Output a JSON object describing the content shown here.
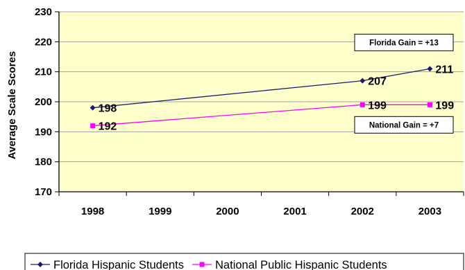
{
  "chart_data": {
    "type": "line",
    "title": "",
    "xlabel": "",
    "ylabel": "Average Scale Scores",
    "categories": [
      "1998",
      "1999",
      "2000",
      "2001",
      "2002",
      "2003"
    ],
    "ylim": [
      170,
      230
    ],
    "yticks": [
      170,
      180,
      190,
      200,
      210,
      220,
      230
    ],
    "grid": true,
    "legend_position": "bottom",
    "series": [
      {
        "name": "Florida Hispanic Students",
        "color": "#1a1a6e",
        "marker": "diamond",
        "points": [
          {
            "x": "1998",
            "y": 198
          },
          {
            "x": "2002",
            "y": 207
          },
          {
            "x": "2003",
            "y": 211
          }
        ],
        "labels": [
          "198",
          "207",
          "211"
        ]
      },
      {
        "name": "National Public Hispanic Students",
        "color": "#ff00ff",
        "marker": "square",
        "points": [
          {
            "x": "1998",
            "y": 192
          },
          {
            "x": "2002",
            "y": 199
          },
          {
            "x": "2003",
            "y": 199
          }
        ],
        "labels": [
          "192",
          "199",
          "199"
        ]
      }
    ],
    "annotations": [
      {
        "text": "Florida Gain = +13",
        "near_series": "Florida Hispanic Students"
      },
      {
        "text": "National Gain = +7",
        "near_series": "National Public Hispanic Students"
      }
    ]
  },
  "colors": {
    "plot_background": "#ffffcc",
    "gridline": "#a0a0a0"
  }
}
